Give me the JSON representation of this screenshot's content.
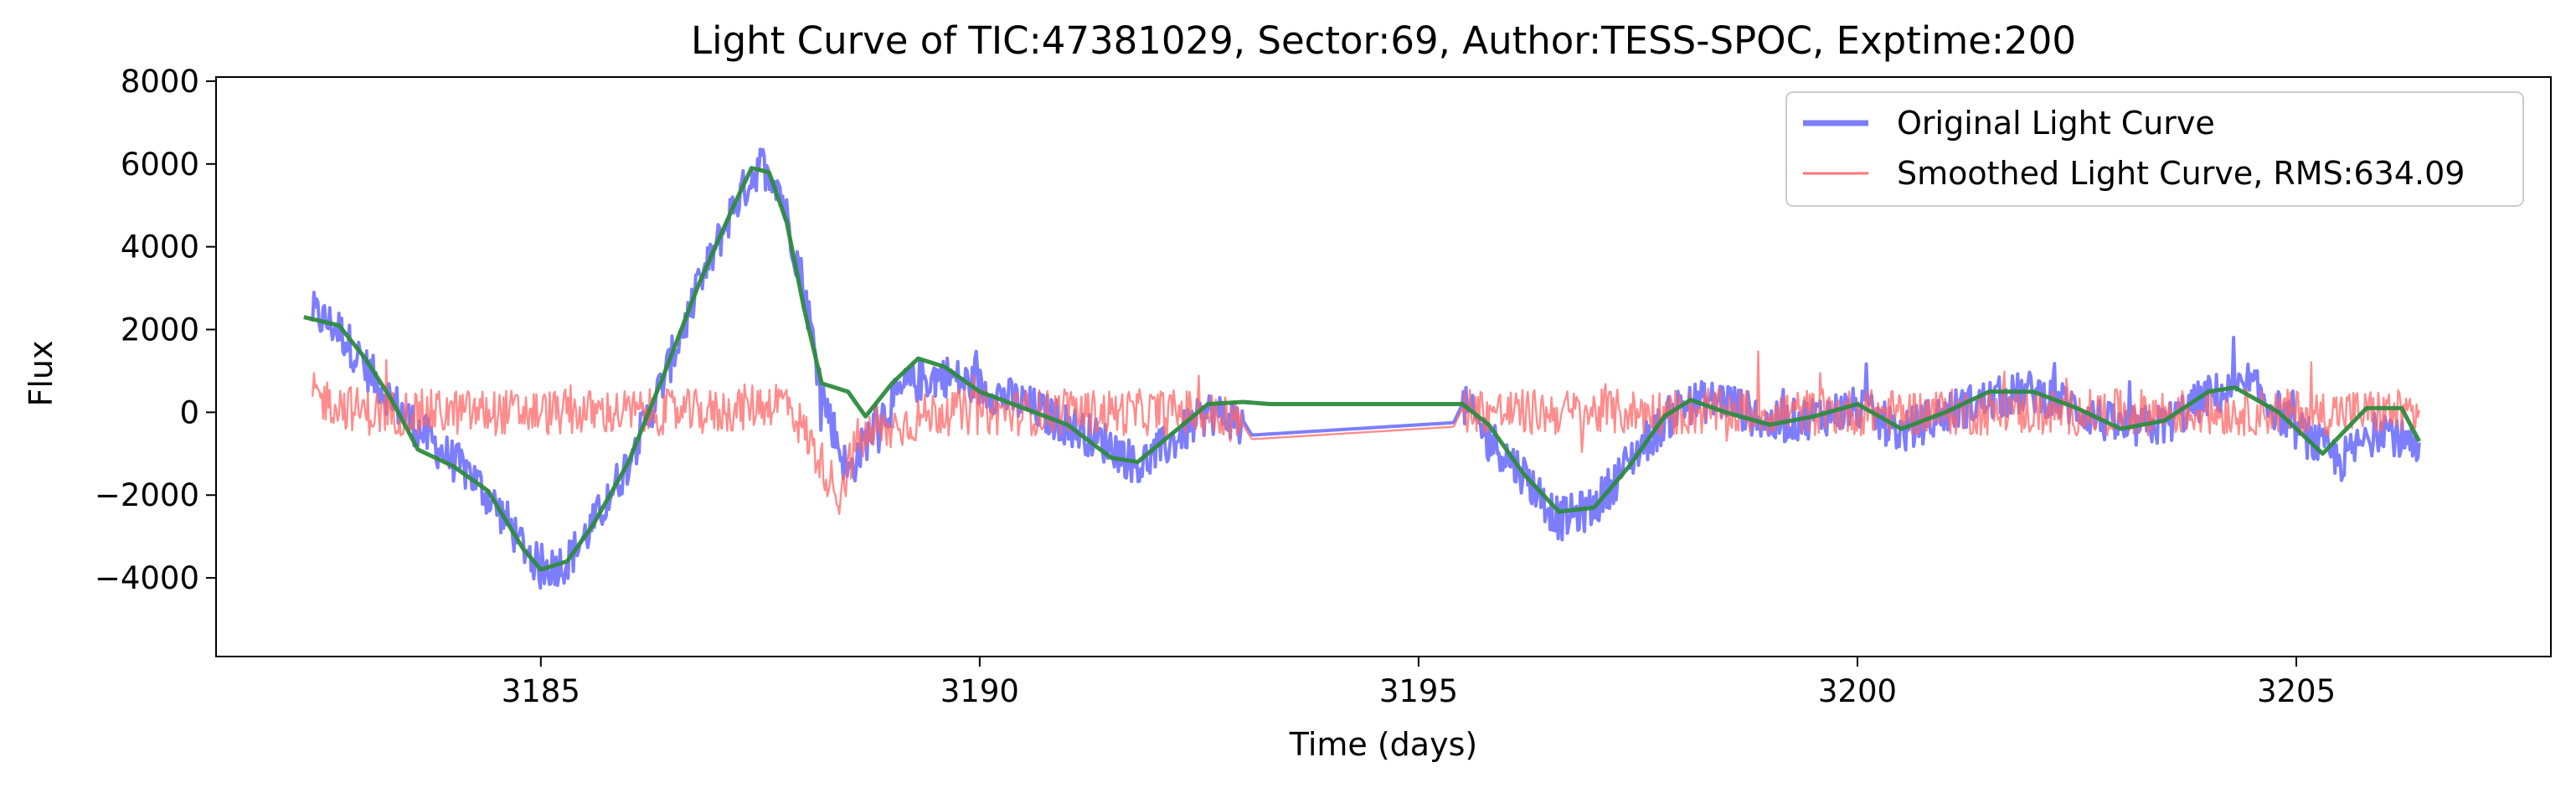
{
  "chart_data": {
    "type": "line",
    "title": "Light Curve of TIC:47381029, Sector:69, Author:TESS-SPOC, Exptime:200",
    "xlabel": "Time (days)",
    "ylabel": "Flux",
    "xlim": [
      3181.3,
      3207.9
    ],
    "ylim": [
      -5900,
      8100
    ],
    "xticks": [
      3185,
      3190,
      3195,
      3200,
      3205
    ],
    "yticks": [
      -4000,
      -2000,
      0,
      2000,
      4000,
      6000,
      8000
    ],
    "grid": false,
    "legend_position": "top-right",
    "gaps": [
      [
        3193.0,
        3195.5
      ]
    ],
    "series": [
      {
        "name": "Original Light Curve",
        "role": "original",
        "color": "#6666ff",
        "noise": 520,
        "points": [
          [
            3182.4,
            2400
          ],
          [
            3182.7,
            2000
          ],
          [
            3183.0,
            1100
          ],
          [
            3183.3,
            300
          ],
          [
            3183.6,
            -400
          ],
          [
            3183.9,
            -1000
          ],
          [
            3184.2,
            -1500
          ],
          [
            3184.5,
            -2300
          ],
          [
            3184.8,
            -3200
          ],
          [
            3185.0,
            -3800
          ],
          [
            3185.3,
            -3600
          ],
          [
            3185.6,
            -2700
          ],
          [
            3186.0,
            -1200
          ],
          [
            3186.4,
            800
          ],
          [
            3186.8,
            3000
          ],
          [
            3187.2,
            5000
          ],
          [
            3187.5,
            6000
          ],
          [
            3187.7,
            5600
          ],
          [
            3188.0,
            3000
          ],
          [
            3188.2,
            500
          ],
          [
            3188.5,
            -1500
          ],
          [
            3188.8,
            -300
          ],
          [
            3189.2,
            700
          ],
          [
            3189.6,
            900
          ],
          [
            3190.0,
            600
          ],
          [
            3190.5,
            200
          ],
          [
            3191.0,
            -300
          ],
          [
            3191.5,
            -800
          ],
          [
            3191.8,
            -1300
          ],
          [
            3192.2,
            -700
          ],
          [
            3192.6,
            0
          ],
          [
            3193.0,
            -200
          ],
          [
            3193.1,
            -550
          ],
          [
            3195.4,
            -250
          ],
          [
            3195.5,
            200
          ],
          [
            3195.8,
            -600
          ],
          [
            3196.2,
            -1500
          ],
          [
            3196.6,
            -2600
          ],
          [
            3197.0,
            -2300
          ],
          [
            3197.5,
            -900
          ],
          [
            3198.0,
            200
          ],
          [
            3198.5,
            300
          ],
          [
            3199.0,
            -300
          ],
          [
            3199.5,
            -100
          ],
          [
            3200.0,
            100
          ],
          [
            3200.5,
            -500
          ],
          [
            3201.0,
            0
          ],
          [
            3201.5,
            300
          ],
          [
            3202.0,
            500
          ],
          [
            3202.5,
            100
          ],
          [
            3203.0,
            -400
          ],
          [
            3203.5,
            -300
          ],
          [
            3204.0,
            400
          ],
          [
            3204.5,
            600
          ],
          [
            3205.0,
            -400
          ],
          [
            3205.5,
            -1200
          ],
          [
            3206.0,
            -300
          ],
          [
            3206.4,
            -1100
          ]
        ]
      },
      {
        "name": "Smoothed Light Curve, RMS:634.09",
        "role": "residual",
        "color": "#ff6666",
        "noise": 560,
        "points": [
          [
            3182.4,
            400
          ],
          [
            3183.0,
            0
          ],
          [
            3184.0,
            0
          ],
          [
            3185.0,
            0
          ],
          [
            3186.0,
            0
          ],
          [
            3187.0,
            0
          ],
          [
            3187.8,
            300
          ],
          [
            3188.4,
            -2000
          ],
          [
            3188.6,
            -700
          ],
          [
            3189.5,
            0
          ],
          [
            3190.5,
            0
          ],
          [
            3191.5,
            0
          ],
          [
            3192.5,
            0
          ],
          [
            3193.0,
            -300
          ],
          [
            3193.1,
            -650
          ],
          [
            3195.4,
            -350
          ],
          [
            3195.5,
            100
          ],
          [
            3196.0,
            0
          ],
          [
            3197.0,
            0
          ],
          [
            3198.0,
            0
          ],
          [
            3199.0,
            0
          ],
          [
            3200.0,
            0
          ],
          [
            3201.0,
            0
          ],
          [
            3202.0,
            0
          ],
          [
            3203.0,
            0
          ],
          [
            3204.0,
            0
          ],
          [
            3205.0,
            0
          ],
          [
            3206.0,
            0
          ],
          [
            3206.4,
            0
          ]
        ]
      },
      {
        "name": "",
        "role": "trend",
        "color": "#2e8b3e",
        "points": [
          [
            3182.3,
            2300
          ],
          [
            3182.7,
            2100
          ],
          [
            3183.0,
            1300
          ],
          [
            3183.3,
            300
          ],
          [
            3183.6,
            -900
          ],
          [
            3184.0,
            -1300
          ],
          [
            3184.4,
            -1900
          ],
          [
            3184.8,
            -3300
          ],
          [
            3185.0,
            -3800
          ],
          [
            3185.3,
            -3600
          ],
          [
            3185.6,
            -2700
          ],
          [
            3186.0,
            -1200
          ],
          [
            3186.4,
            900
          ],
          [
            3186.8,
            3100
          ],
          [
            3187.2,
            5000
          ],
          [
            3187.4,
            5900
          ],
          [
            3187.6,
            5800
          ],
          [
            3187.8,
            4600
          ],
          [
            3188.0,
            2500
          ],
          [
            3188.2,
            700
          ],
          [
            3188.5,
            500
          ],
          [
            3188.7,
            -100
          ],
          [
            3189.0,
            700
          ],
          [
            3189.3,
            1300
          ],
          [
            3189.6,
            1100
          ],
          [
            3190.0,
            500
          ],
          [
            3190.5,
            100
          ],
          [
            3191.0,
            -300
          ],
          [
            3191.5,
            -1100
          ],
          [
            3191.8,
            -1200
          ],
          [
            3192.2,
            -500
          ],
          [
            3192.6,
            200
          ],
          [
            3193.0,
            250
          ],
          [
            3193.3,
            200
          ],
          [
            3195.5,
            200
          ],
          [
            3195.8,
            -300
          ],
          [
            3196.2,
            -1500
          ],
          [
            3196.6,
            -2400
          ],
          [
            3197.0,
            -2300
          ],
          [
            3197.4,
            -1300
          ],
          [
            3197.8,
            -100
          ],
          [
            3198.1,
            300
          ],
          [
            3198.5,
            0
          ],
          [
            3199.0,
            -300
          ],
          [
            3199.5,
            -100
          ],
          [
            3200.0,
            200
          ],
          [
            3200.5,
            -400
          ],
          [
            3201.0,
            0
          ],
          [
            3201.5,
            500
          ],
          [
            3202.0,
            500
          ],
          [
            3202.5,
            100
          ],
          [
            3203.0,
            -400
          ],
          [
            3203.5,
            -200
          ],
          [
            3204.0,
            500
          ],
          [
            3204.3,
            600
          ],
          [
            3204.8,
            0
          ],
          [
            3205.3,
            -1000
          ],
          [
            3205.8,
            100
          ],
          [
            3206.2,
            100
          ],
          [
            3206.4,
            -700
          ]
        ]
      }
    ]
  }
}
